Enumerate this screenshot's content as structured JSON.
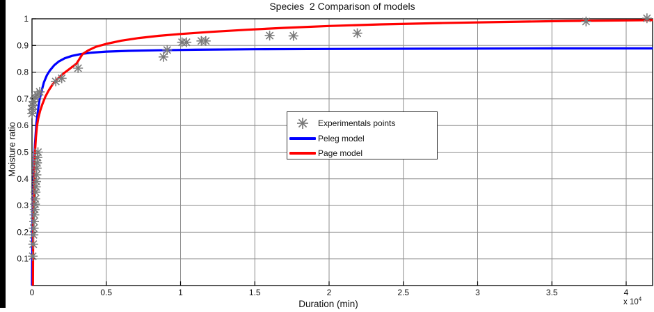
{
  "chart_data": {
    "type": "line",
    "title": "Species  2 Comparison of models",
    "xlabel": "Duration (min)",
    "ylabel": "Moisture ratio",
    "x_axis": {
      "unit_note": "values shown in units of 10^4 minutes",
      "ticks": [
        0,
        0.5,
        1,
        1.5,
        2,
        2.5,
        3,
        3.5,
        4
      ],
      "tick_labels": [
        "0",
        "0.5",
        "1",
        "1.5",
        "2",
        "2.5",
        "3",
        "3.5",
        "4"
      ],
      "multiplier_text": "x 10",
      "multiplier_exponent": "4",
      "range": [
        0,
        4.18
      ]
    },
    "y_axis": {
      "ticks": [
        0.1,
        0.2,
        0.3,
        0.4,
        0.5,
        0.6,
        0.7,
        0.8,
        0.9,
        1
      ],
      "tick_labels": [
        "0.1",
        "0.2",
        "0.3",
        "0.4",
        "0.5",
        "0.6",
        "0.7",
        "0.8",
        "0.9",
        "1"
      ],
      "range": [
        0,
        1
      ]
    },
    "grid": true,
    "legend": {
      "position": "center",
      "entries": [
        {
          "label": "Experimentals points",
          "marker": "asterisk",
          "color": "#7a7a7a"
        },
        {
          "label": "Peleg model",
          "marker": "line",
          "color": "#0000ff"
        },
        {
          "label": "Page model",
          "marker": "line",
          "color": "#ff0000"
        }
      ]
    },
    "colors": {
      "experimental_marker": "#7a7a7a",
      "peleg_line": "#0000ff",
      "page_line": "#ff0000",
      "grid": "#8c8c8c",
      "axis": "#000000",
      "background": "#ffffff"
    },
    "series": [
      {
        "name": "Experimentals points",
        "type": "scatter",
        "marker": "asterisk",
        "color": "#7a7a7a",
        "points": [
          [
            0.005,
            0.11
          ],
          [
            0.008,
            0.155
          ],
          [
            0.01,
            0.19
          ],
          [
            0.012,
            0.215
          ],
          [
            0.014,
            0.24
          ],
          [
            0.016,
            0.265
          ],
          [
            0.018,
            0.285
          ],
          [
            0.02,
            0.305
          ],
          [
            0.022,
            0.325
          ],
          [
            0.024,
            0.35
          ],
          [
            0.026,
            0.37
          ],
          [
            0.028,
            0.39
          ],
          [
            0.03,
            0.415
          ],
          [
            0.032,
            0.44
          ],
          [
            0.034,
            0.46
          ],
          [
            0.037,
            0.48
          ],
          [
            0.04,
            0.5
          ],
          [
            0.001,
            0.645
          ],
          [
            0.003,
            0.66
          ],
          [
            0.006,
            0.675
          ],
          [
            0.01,
            0.69
          ],
          [
            0.02,
            0.705
          ],
          [
            0.035,
            0.715
          ],
          [
            0.052,
            0.726
          ],
          [
            0.16,
            0.765
          ],
          [
            0.2,
            0.777
          ],
          [
            0.31,
            0.815
          ],
          [
            0.885,
            0.857
          ],
          [
            0.91,
            0.883
          ],
          [
            1.01,
            0.912
          ],
          [
            1.04,
            0.912
          ],
          [
            1.14,
            0.917
          ],
          [
            1.17,
            0.917
          ],
          [
            1.6,
            0.937
          ],
          [
            1.76,
            0.936
          ],
          [
            2.19,
            0.946
          ],
          [
            3.73,
            0.99
          ],
          [
            4.14,
            1.002
          ]
        ]
      },
      {
        "name": "Peleg model",
        "type": "line",
        "color": "#0000ff",
        "width": 3.2,
        "points": [
          [
            0,
            0
          ],
          [
            0.003,
            0.2
          ],
          [
            0.006,
            0.3
          ],
          [
            0.01,
            0.39
          ],
          [
            0.015,
            0.47
          ],
          [
            0.02,
            0.53
          ],
          [
            0.03,
            0.61
          ],
          [
            0.04,
            0.655
          ],
          [
            0.05,
            0.695
          ],
          [
            0.065,
            0.73
          ],
          [
            0.08,
            0.762
          ],
          [
            0.1,
            0.788
          ],
          [
            0.12,
            0.806
          ],
          [
            0.15,
            0.826
          ],
          [
            0.18,
            0.84
          ],
          [
            0.22,
            0.852
          ],
          [
            0.27,
            0.861
          ],
          [
            0.33,
            0.868
          ],
          [
            0.4,
            0.873
          ],
          [
            0.5,
            0.877
          ],
          [
            0.65,
            0.88
          ],
          [
            0.85,
            0.882
          ],
          [
            1.1,
            0.884
          ],
          [
            1.5,
            0.886
          ],
          [
            2.0,
            0.887
          ],
          [
            2.7,
            0.888
          ],
          [
            3.5,
            0.889
          ],
          [
            4.18,
            0.889
          ]
        ]
      },
      {
        "name": "Page model",
        "type": "line",
        "color": "#ff0000",
        "width": 3.2,
        "points": [
          [
            0.006,
            0
          ],
          [
            0.008,
            0.2
          ],
          [
            0.01,
            0.3
          ],
          [
            0.013,
            0.38
          ],
          [
            0.016,
            0.44
          ],
          [
            0.02,
            0.5
          ],
          [
            0.026,
            0.555
          ],
          [
            0.034,
            0.6
          ],
          [
            0.042,
            0.627
          ],
          [
            0.055,
            0.655
          ],
          [
            0.07,
            0.68
          ],
          [
            0.09,
            0.708
          ],
          [
            0.112,
            0.731
          ],
          [
            0.14,
            0.755
          ],
          [
            0.175,
            0.776
          ],
          [
            0.21,
            0.794
          ],
          [
            0.255,
            0.813
          ],
          [
            0.3,
            0.832
          ],
          [
            0.34,
            0.868
          ],
          [
            0.38,
            0.882
          ],
          [
            0.43,
            0.895
          ],
          [
            0.5,
            0.906
          ],
          [
            0.6,
            0.918
          ],
          [
            0.72,
            0.928
          ],
          [
            0.85,
            0.936
          ],
          [
            1.0,
            0.943
          ],
          [
            1.2,
            0.951
          ],
          [
            1.45,
            0.959
          ],
          [
            1.7,
            0.966
          ],
          [
            2.0,
            0.973
          ],
          [
            2.35,
            0.979
          ],
          [
            2.75,
            0.984
          ],
          [
            3.15,
            0.988
          ],
          [
            3.6,
            0.992
          ],
          [
            4.0,
            0.994
          ],
          [
            4.18,
            0.995
          ]
        ]
      }
    ]
  }
}
